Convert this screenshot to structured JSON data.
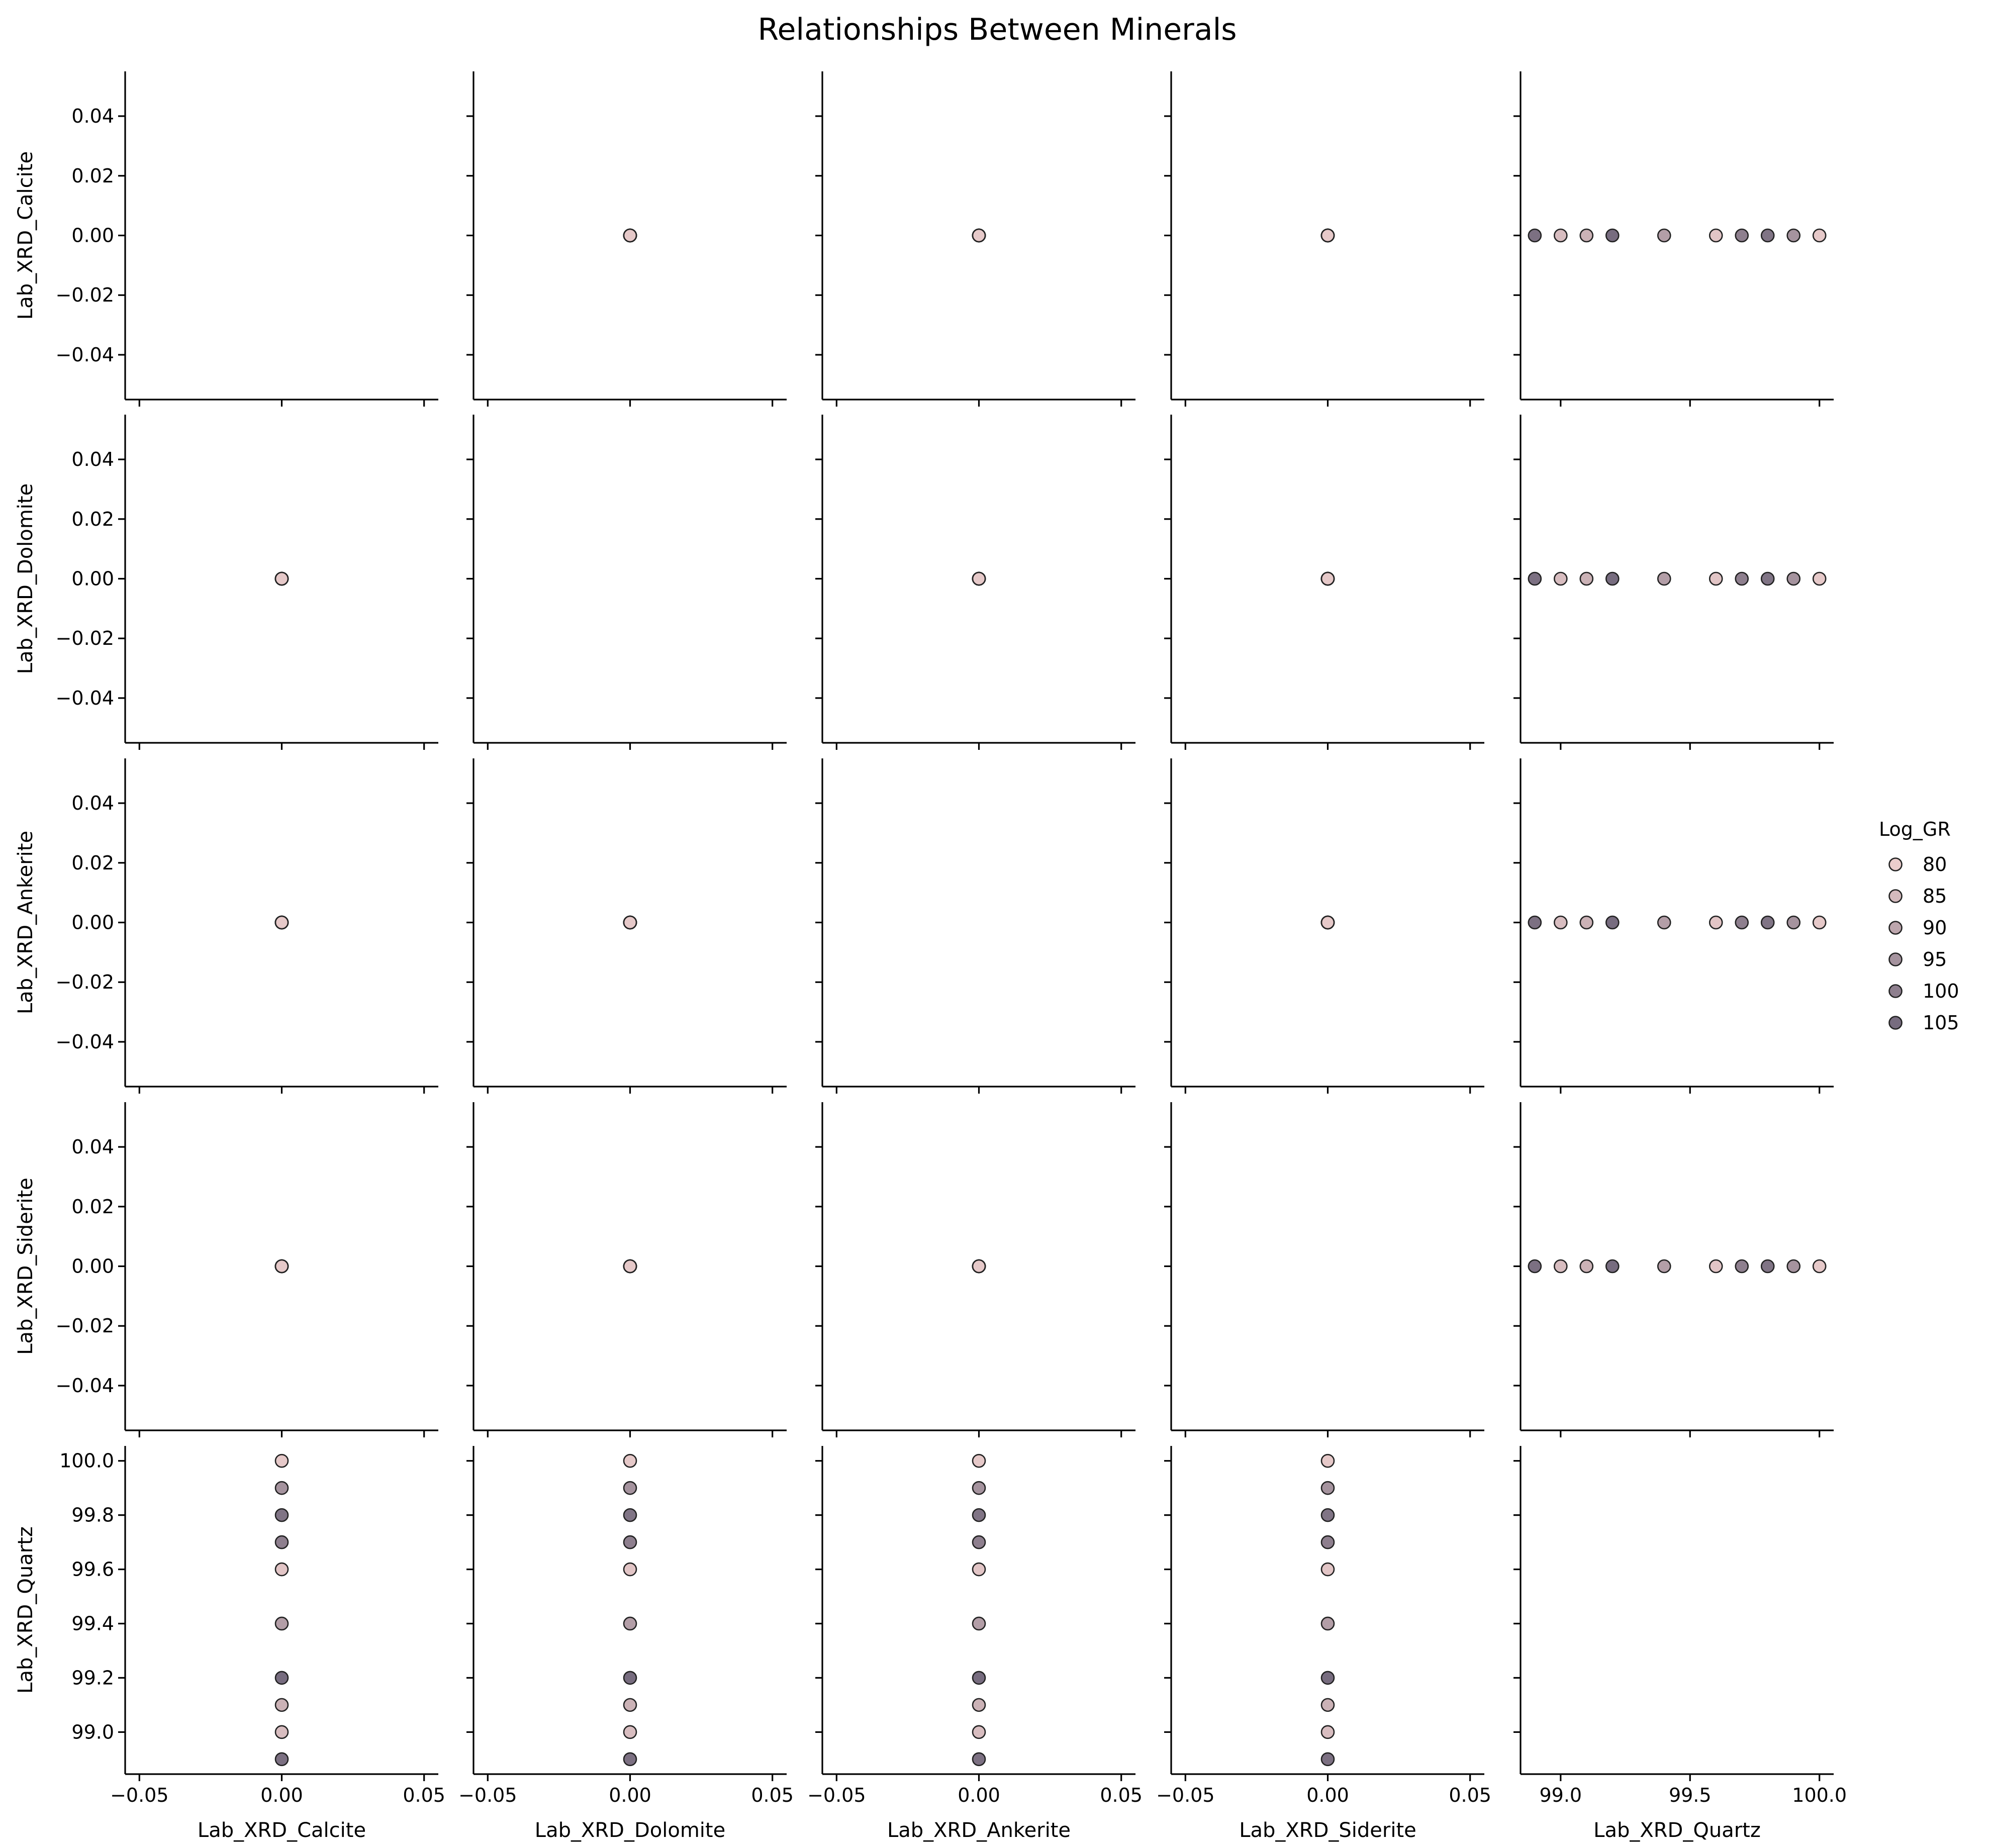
{
  "chart_data": {
    "type": "scatter",
    "title": "Relationships Between Minerals",
    "variables": [
      "Lab_XRD_Calcite",
      "Lab_XRD_Dolomite",
      "Lab_XRD_Ankerite",
      "Lab_XRD_Siderite",
      "Lab_XRD_Quartz"
    ],
    "hue_variable": "Log_GR",
    "legend": {
      "title": "Log_GR",
      "placement": "center-right",
      "entries": [
        {
          "label": "80",
          "value": 80
        },
        {
          "label": "85",
          "value": 85
        },
        {
          "label": "90",
          "value": 90
        },
        {
          "label": "95",
          "value": 95
        },
        {
          "label": "100",
          "value": 100
        },
        {
          "label": "105",
          "value": 105
        }
      ]
    },
    "diagonal": "empty",
    "ranges": {
      "Lab_XRD_Calcite": [
        -0.055,
        0.055
      ],
      "Lab_XRD_Dolomite": [
        -0.055,
        0.055
      ],
      "Lab_XRD_Ankerite": [
        -0.055,
        0.055
      ],
      "Lab_XRD_Siderite": [
        -0.055,
        0.055
      ],
      "Lab_XRD_Quartz": [
        98.845,
        100.055
      ]
    },
    "ticks": {
      "Lab_XRD_Calcite": [
        -0.05,
        0.0,
        0.05
      ],
      "Lab_XRD_Dolomite": [
        -0.05,
        0.0,
        0.05
      ],
      "Lab_XRD_Ankerite": [
        -0.05,
        0.0,
        0.05
      ],
      "Lab_XRD_Siderite": [
        -0.05,
        0.0,
        0.05
      ],
      "Lab_XRD_Quartz": [
        99.0,
        99.5,
        100.0
      ]
    },
    "y_ticks": {
      "Lab_XRD_Calcite": [
        -0.04,
        -0.02,
        0.0,
        0.02,
        0.04
      ],
      "Lab_XRD_Dolomite": [
        -0.04,
        -0.02,
        0.0,
        0.02,
        0.04
      ],
      "Lab_XRD_Ankerite": [
        -0.04,
        -0.02,
        0.0,
        0.02,
        0.04
      ],
      "Lab_XRD_Siderite": [
        -0.04,
        -0.02,
        0.0,
        0.02,
        0.04
      ],
      "Lab_XRD_Quartz": [
        99.0,
        99.2,
        99.4,
        99.6,
        99.8,
        100.0
      ]
    },
    "x_tick_labels": {
      "Lab_XRD_Calcite": [
        "−0.05",
        "0.00",
        "0.05"
      ],
      "Lab_XRD_Dolomite": [
        "−0.05",
        "0.00",
        "0.05"
      ],
      "Lab_XRD_Ankerite": [
        "−0.05",
        "0.00",
        "0.05"
      ],
      "Lab_XRD_Siderite": [
        "−0.05",
        "0.00",
        "0.05"
      ],
      "Lab_XRD_Quartz": [
        "99.0",
        "99.5",
        "100.0"
      ]
    },
    "y_tick_labels": {
      "Lab_XRD_Calcite": [
        "−0.04",
        "−0.02",
        "0.00",
        "0.02",
        "0.04"
      ],
      "Lab_XRD_Dolomite": [
        "−0.04",
        "−0.02",
        "0.00",
        "0.02",
        "0.04"
      ],
      "Lab_XRD_Ankerite": [
        "−0.04",
        "−0.02",
        "0.00",
        "0.02",
        "0.04"
      ],
      "Lab_XRD_Siderite": [
        "−0.04",
        "−0.02",
        "0.00",
        "0.02",
        "0.04"
      ],
      "Lab_XRD_Quartz": [
        "99.0",
        "99.2",
        "99.4",
        "99.6",
        "99.8",
        "100.0"
      ]
    },
    "samples": [
      {
        "Lab_XRD_Calcite": 0,
        "Lab_XRD_Dolomite": 0,
        "Lab_XRD_Ankerite": 0,
        "Lab_XRD_Siderite": 0,
        "Lab_XRD_Quartz": 98.9,
        "Log_GR": 104
      },
      {
        "Lab_XRD_Calcite": 0,
        "Lab_XRD_Dolomite": 0,
        "Lab_XRD_Ankerite": 0,
        "Lab_XRD_Siderite": 0,
        "Lab_XRD_Quartz": 99.0,
        "Log_GR": 84
      },
      {
        "Lab_XRD_Calcite": 0,
        "Lab_XRD_Dolomite": 0,
        "Lab_XRD_Ankerite": 0,
        "Lab_XRD_Siderite": 0,
        "Lab_XRD_Quartz": 99.1,
        "Log_GR": 87
      },
      {
        "Lab_XRD_Calcite": 0,
        "Lab_XRD_Dolomite": 0,
        "Lab_XRD_Ankerite": 0,
        "Lab_XRD_Siderite": 0,
        "Lab_XRD_Quartz": 99.2,
        "Log_GR": 105
      },
      {
        "Lab_XRD_Calcite": 0,
        "Lab_XRD_Dolomite": 0,
        "Lab_XRD_Ankerite": 0,
        "Lab_XRD_Siderite": 0,
        "Lab_XRD_Quartz": 99.4,
        "Log_GR": 92
      },
      {
        "Lab_XRD_Calcite": 0,
        "Lab_XRD_Dolomite": 0,
        "Lab_XRD_Ankerite": 0,
        "Lab_XRD_Siderite": 0,
        "Lab_XRD_Quartz": 99.6,
        "Log_GR": 82
      },
      {
        "Lab_XRD_Calcite": 0,
        "Lab_XRD_Dolomite": 0,
        "Lab_XRD_Ankerite": 0,
        "Lab_XRD_Siderite": 0,
        "Lab_XRD_Quartz": 99.7,
        "Log_GR": 100
      },
      {
        "Lab_XRD_Calcite": 0,
        "Lab_XRD_Dolomite": 0,
        "Lab_XRD_Ankerite": 0,
        "Lab_XRD_Siderite": 0,
        "Lab_XRD_Quartz": 99.8,
        "Log_GR": 103
      },
      {
        "Lab_XRD_Calcite": 0,
        "Lab_XRD_Dolomite": 0,
        "Lab_XRD_Ankerite": 0,
        "Lab_XRD_Siderite": 0,
        "Lab_XRD_Quartz": 99.9,
        "Log_GR": 95
      },
      {
        "Lab_XRD_Calcite": 0,
        "Lab_XRD_Dolomite": 0,
        "Lab_XRD_Ankerite": 0,
        "Lab_XRD_Siderite": 0,
        "Lab_XRD_Quartz": 100.0,
        "Log_GR": 81
      }
    ],
    "colormap": {
      "low": {
        "value": 80,
        "color": "#ebcdcc"
      },
      "high": {
        "value": 105,
        "color": "#776c7f"
      }
    }
  }
}
